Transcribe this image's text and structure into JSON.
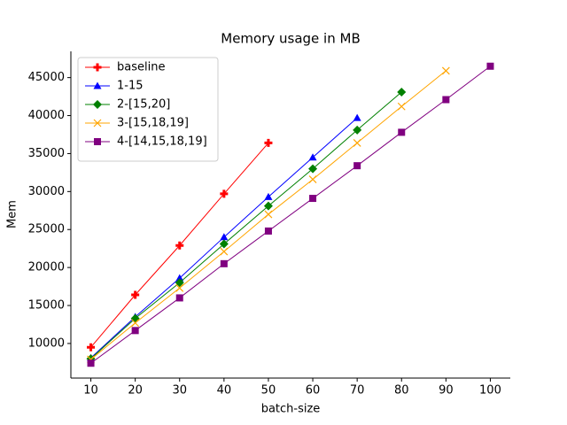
{
  "chart_data": {
    "type": "line",
    "title": "Memory usage in MB",
    "x_label": "batch-size",
    "y_label": "Mem",
    "xlim": [
      5.5,
      104.5
    ],
    "ylim": [
      5445,
      48455
    ],
    "xticks": [
      10,
      20,
      30,
      40,
      50,
      60,
      70,
      80,
      90,
      100
    ],
    "yticks": [
      10000,
      15000,
      20000,
      25000,
      30000,
      35000,
      40000,
      45000
    ],
    "legend": "upper left",
    "grid": false,
    "series": [
      {
        "name": "baseline",
        "color": "#ff0000",
        "marker": "plus",
        "x": [
          10,
          20,
          30,
          40,
          50
        ],
        "values": [
          9500,
          16400,
          22900,
          29700,
          36400
        ]
      },
      {
        "name": "1-15",
        "color": "#0000ff",
        "marker": "triangle",
        "x": [
          10,
          20,
          30,
          40,
          50,
          60,
          70
        ],
        "values": [
          8100,
          13500,
          18600,
          24000,
          29300,
          34500,
          39700
        ]
      },
      {
        "name": "2-[15,20]",
        "color": "#008000",
        "marker": "diamond",
        "x": [
          10,
          20,
          30,
          40,
          50,
          60,
          70,
          80
        ],
        "values": [
          8000,
          13300,
          18000,
          23100,
          28100,
          33000,
          38100,
          43100
        ]
      },
      {
        "name": "3-[15,18,19]",
        "color": "#ffa500",
        "marker": "x",
        "x": [
          10,
          20,
          30,
          40,
          50,
          60,
          70,
          80,
          90
        ],
        "values": [
          7900,
          12700,
          17300,
          22100,
          27000,
          31600,
          36400,
          41200,
          45900
        ]
      },
      {
        "name": "4-[14,15,18,19]",
        "color": "#800080",
        "marker": "square",
        "x": [
          10,
          20,
          30,
          40,
          50,
          60,
          70,
          80,
          90,
          100
        ],
        "values": [
          7400,
          11700,
          16000,
          20500,
          24800,
          29100,
          33400,
          37800,
          42100,
          46500
        ]
      }
    ]
  }
}
